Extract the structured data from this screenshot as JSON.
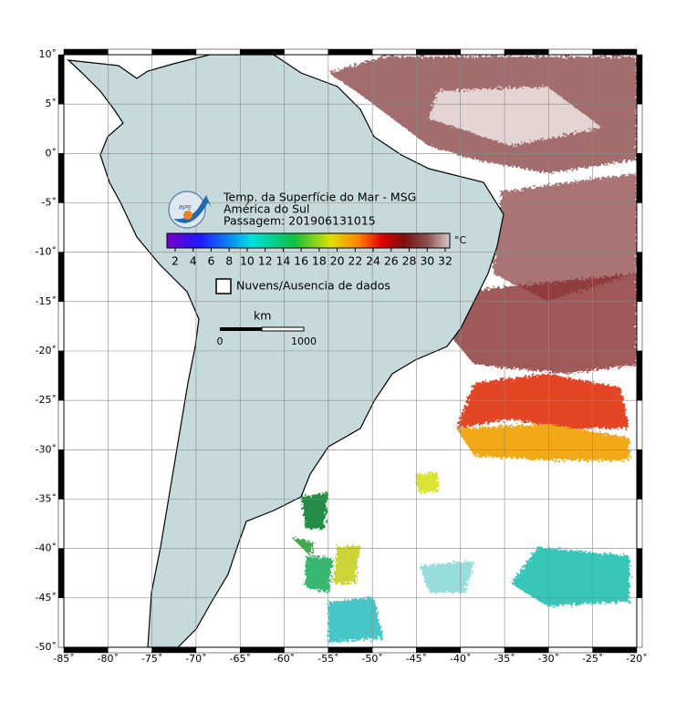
{
  "map": {
    "title_lines": [
      "Temp. da Superfície do Mar - MSG",
      "América do Sul",
      "Passagem: 201906131015"
    ],
    "logo_text": "INPE",
    "colorbar": {
      "unit": "°C",
      "ticks": [
        2,
        4,
        6,
        8,
        10,
        12,
        14,
        16,
        18,
        20,
        22,
        24,
        26,
        28,
        30,
        32
      ]
    },
    "legend": "Nuvens/Ausencia de dados",
    "scale": {
      "unit": "km",
      "labels": [
        "0",
        "1000"
      ]
    },
    "xlim": [
      -85,
      -20
    ],
    "ylim": [
      -50,
      10
    ],
    "xticks": [
      {
        "value": -85,
        "label": "-85˚"
      },
      {
        "value": -80,
        "label": "-80˚"
      },
      {
        "value": -75,
        "label": "-75˚"
      },
      {
        "value": -70,
        "label": "-70˚"
      },
      {
        "value": -65,
        "label": "-65˚"
      },
      {
        "value": -60,
        "label": "-60˚"
      },
      {
        "value": -55,
        "label": "-55˚"
      },
      {
        "value": -50,
        "label": "-50˚"
      },
      {
        "value": -45,
        "label": "-45˚"
      },
      {
        "value": -40,
        "label": "-40˚"
      },
      {
        "value": -35,
        "label": "-35˚"
      },
      {
        "value": -30,
        "label": "-30˚"
      },
      {
        "value": -25,
        "label": "-25˚"
      },
      {
        "value": -20,
        "label": "-20˚"
      }
    ],
    "yticks": [
      {
        "value": 10,
        "label": "10˚"
      },
      {
        "value": 5,
        "label": "5˚"
      },
      {
        "value": 0,
        "label": "0˚"
      },
      {
        "value": -5,
        "label": "-5˚"
      },
      {
        "value": -10,
        "label": "-10˚"
      },
      {
        "value": -15,
        "label": "-15˚"
      },
      {
        "value": -20,
        "label": "-20˚"
      },
      {
        "value": -25,
        "label": "-25˚"
      },
      {
        "value": -30,
        "label": "-30˚"
      },
      {
        "value": -35,
        "label": "-35˚"
      },
      {
        "value": -40,
        "label": "-40˚"
      },
      {
        "value": -45,
        "label": "-45˚"
      },
      {
        "value": -50,
        "label": "-50˚"
      }
    ]
  }
}
